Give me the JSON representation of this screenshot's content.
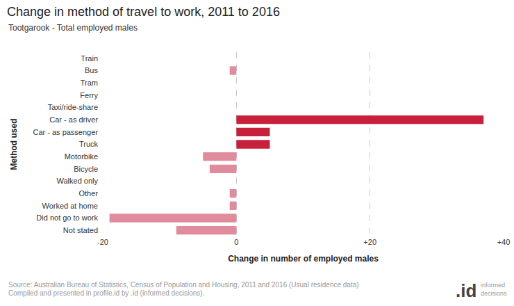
{
  "chart_data": {
    "type": "bar",
    "orientation": "horizontal",
    "title": "Change in method of travel to work, 2011 to 2016",
    "subtitle": "Tootgarook - Total employed males",
    "x_label": "Change in number of employed males",
    "y_label": "Method used",
    "categories": [
      "Train",
      "Bus",
      "Tram",
      "Ferry",
      "Taxi/ride-share",
      "Car - as driver",
      "Car - as passenger",
      "Truck",
      "Motorbike",
      "Bicycle",
      "Walked only",
      "Other",
      "Worked at home",
      "Did not go to work",
      "Not stated"
    ],
    "values": [
      0,
      -1,
      0,
      0,
      0,
      37,
      5,
      5,
      -5,
      -4,
      0,
      -1,
      -1,
      -19,
      -9
    ],
    "colors": [
      "#e08c9c",
      "#e08c9c",
      "#e08c9c",
      "#e08c9c",
      "#e08c9c",
      "#c8203a",
      "#c8203a",
      "#c8203a",
      "#e08c9c",
      "#e08c9c",
      "#e08c9c",
      "#e08c9c",
      "#e08c9c",
      "#e08c9c",
      "#e08c9c"
    ],
    "xlim": [
      -20,
      40
    ],
    "xticks": [
      -20,
      0,
      {
        "value": 20,
        "label": "+20"
      },
      {
        "value": 40,
        "label": "+40"
      }
    ],
    "grid": true,
    "annotations": [
      "Source: Australian Bureau of Statistics, Census of Population and Housing, 2011 and 2016 (Usual residence data)",
      "Compiled and presented in profile.id by .id (informed decisions).",
      ".id",
      "informed decisions"
    ]
  }
}
